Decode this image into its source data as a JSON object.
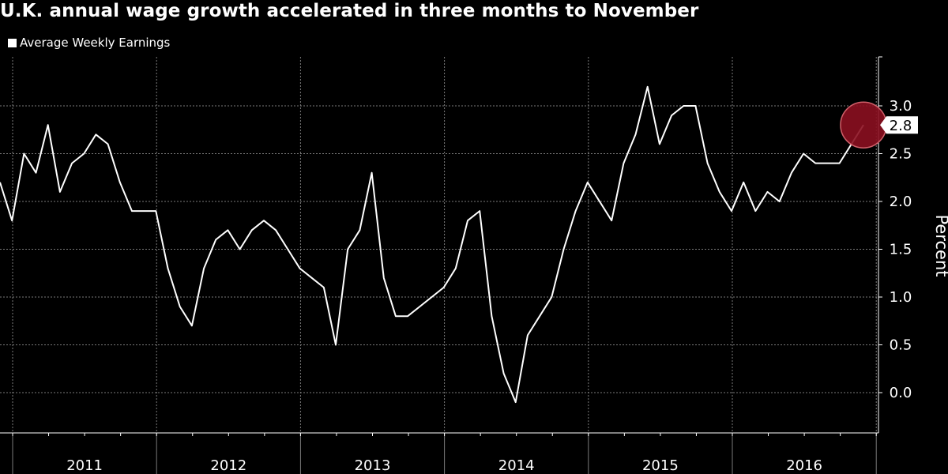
{
  "colors": {
    "background": "#000000",
    "line": "#ffffff",
    "grid": "#7a7a7a",
    "highlight_fill": "#8b0f20",
    "highlight_stroke": "#d0606a",
    "label_bg": "#ffffff",
    "label_text": "#000000"
  },
  "chart_data": {
    "type": "line",
    "title": "U.K. annual wage growth accelerated in three months to November",
    "ylabel": "Percent",
    "xlabel": "",
    "legend": "top-left",
    "grid": true,
    "y_axis_side": "right",
    "ylim": [
      -0.35,
      3.5
    ],
    "yticks": [
      0.0,
      0.5,
      1.0,
      1.5,
      2.0,
      2.5,
      3.0
    ],
    "ytick_labels": [
      "0.0",
      "0.5",
      "1.0",
      "1.5",
      "2.0",
      "2.5",
      "3.0"
    ],
    "year_labels": [
      "2011",
      "2012",
      "2013",
      "2014",
      "2015",
      "2016"
    ],
    "series": [
      {
        "name": "Average Weekly Earnings",
        "x_start": "2010-11",
        "frequency": "monthly",
        "values": [
          2.2,
          1.8,
          2.5,
          2.3,
          2.8,
          2.1,
          2.4,
          2.5,
          2.7,
          2.6,
          2.2,
          1.9,
          1.9,
          1.9,
          1.3,
          0.9,
          0.7,
          1.3,
          1.6,
          1.7,
          1.5,
          1.7,
          1.8,
          1.7,
          1.5,
          1.3,
          1.2,
          1.1,
          0.5,
          1.5,
          1.7,
          2.3,
          1.2,
          0.8,
          0.8,
          0.9,
          1.0,
          1.1,
          1.3,
          1.8,
          1.9,
          0.8,
          0.2,
          -0.1,
          0.6,
          0.8,
          1.0,
          1.5,
          1.9,
          2.2,
          2.0,
          1.8,
          2.4,
          2.7,
          3.2,
          2.6,
          2.9,
          3.0,
          3.0,
          2.4,
          2.1,
          1.9,
          2.2,
          1.9,
          2.1,
          2.0,
          2.3,
          2.5,
          2.4,
          2.4,
          2.4,
          2.6,
          2.8
        ]
      }
    ],
    "last_value_label": "2.8"
  }
}
